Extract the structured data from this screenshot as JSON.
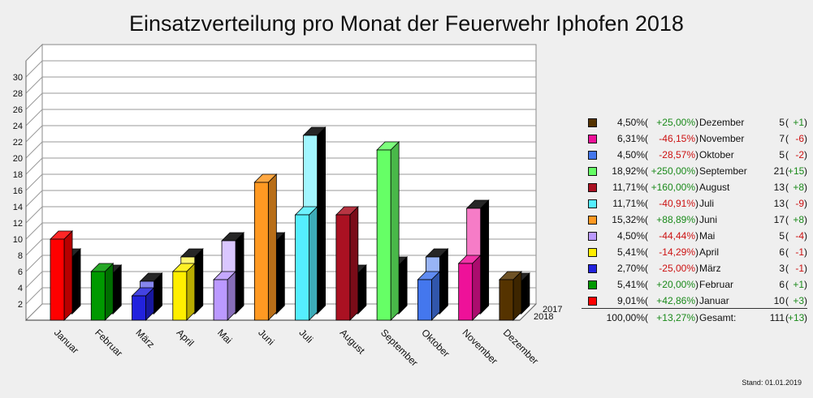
{
  "chart_data": {
    "type": "bar",
    "title": "Einsatzverteilung pro Monat der Feuerwehr Iphofen 2018",
    "categories": [
      "Januar",
      "Februar",
      "März",
      "April",
      "Mai",
      "Juni",
      "Juli",
      "August",
      "September",
      "Oktober",
      "November",
      "Dezember"
    ],
    "series": [
      {
        "name": "2018",
        "values": [
          10,
          6,
          3,
          6,
          5,
          17,
          13,
          13,
          21,
          5,
          7,
          5
        ]
      },
      {
        "name": "2017",
        "values": [
          7,
          5,
          4,
          7,
          9,
          9,
          22,
          5,
          6,
          7,
          13,
          4
        ]
      }
    ],
    "colors": [
      "#ff0000",
      "#009900",
      "#2222dd",
      "#ffee00",
      "#bb99ff",
      "#ff9922",
      "#55eeff",
      "#aa1122",
      "#66ff66",
      "#4477ee",
      "#ee1199",
      "#553300"
    ],
    "yticks": [
      2,
      4,
      6,
      8,
      10,
      12,
      14,
      16,
      18,
      20,
      22,
      24,
      26,
      28,
      30
    ],
    "ylim": [
      0,
      32
    ],
    "grid": true
  },
  "legend": {
    "rows": [
      {
        "pct": "4,50%",
        "change": "+25,00%",
        "month": "Dezember",
        "count": "5",
        "delta": "+1",
        "color": "#553300"
      },
      {
        "pct": "6,31%",
        "change": "-46,15%",
        "month": "November",
        "count": "7",
        "delta": "-6",
        "color": "#ee1199"
      },
      {
        "pct": "4,50%",
        "change": "-28,57%",
        "month": "Oktober",
        "count": "5",
        "delta": "-2",
        "color": "#4477ee"
      },
      {
        "pct": "18,92%",
        "change": "+250,00%",
        "month": "September",
        "count": "21",
        "delta": "+15",
        "color": "#66ff66"
      },
      {
        "pct": "11,71%",
        "change": "+160,00%",
        "month": "August",
        "count": "13",
        "delta": "+8",
        "color": "#aa1122"
      },
      {
        "pct": "11,71%",
        "change": "-40,91%",
        "month": "Juli",
        "count": "13",
        "delta": "-9",
        "color": "#55eeff"
      },
      {
        "pct": "15,32%",
        "change": "+88,89%",
        "month": "Juni",
        "count": "17",
        "delta": "+8",
        "color": "#ff9922"
      },
      {
        "pct": "4,50%",
        "change": "-44,44%",
        "month": "Mai",
        "count": "5",
        "delta": "-4",
        "color": "#bb99ff"
      },
      {
        "pct": "5,41%",
        "change": "-14,29%",
        "month": "April",
        "count": "6",
        "delta": "-1",
        "color": "#ffee00"
      },
      {
        "pct": "2,70%",
        "change": "-25,00%",
        "month": "März",
        "count": "3",
        "delta": "-1",
        "color": "#2222dd"
      },
      {
        "pct": "5,41%",
        "change": "+20,00%",
        "month": "Februar",
        "count": "6",
        "delta": "+1",
        "color": "#009900"
      },
      {
        "pct": "9,01%",
        "change": "+42,86%",
        "month": "Januar",
        "count": "10",
        "delta": "+3",
        "color": "#ff0000"
      }
    ],
    "total": {
      "pct": "100,00%",
      "change": "+13,27%",
      "label": "Gesamt:",
      "count": "111",
      "delta": "+13"
    }
  },
  "depth_labels": {
    "back": "2017",
    "front": "2018"
  },
  "footer": {
    "stand": "Stand: 01.01.2019"
  }
}
